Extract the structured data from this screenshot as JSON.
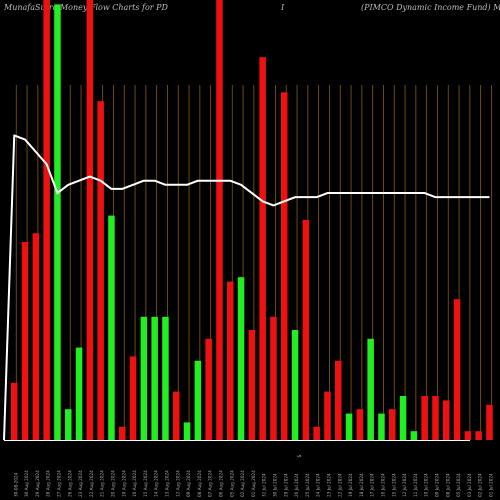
{
  "title": {
    "part1": "MunafaSutra  Money Flow  Charts for PD",
    "part2": "I",
    "part3": "(PIMCO Dynamic Income   Fund) MunafaSutra.com"
  },
  "x_axis_center_label": "$",
  "colors": {
    "background": "#000000",
    "up": "#22ee22",
    "down": "#ee1111",
    "grid": "#8a5a14",
    "line": "#ffffff",
    "axis": "#ffffff",
    "text": "#aaaaaa"
  },
  "chart_data": {
    "type": "bar",
    "title": "MunafaSutra  Money Flow  Charts for PD I (PIMCO Dynamic Income   Fund) MunafaSutra.com",
    "ylim": [
      0,
      100
    ],
    "grid": "vertical",
    "categories": [
      "30-08-2024",
      "30 Aug 2024",
      "29 Aug 2024",
      "28 Aug 2024",
      "27 Aug 2024",
      "26 Aug 2024",
      "23 Aug 2024",
      "22 Aug 2024",
      "21 Aug 2024",
      "20 Aug 2024",
      "19 Aug 2024",
      "16 Aug 2024",
      "15 Aug 2024",
      "14 Aug 2024",
      "13 Aug 2024",
      "12 Aug 2024",
      "09 Aug 2024",
      "08 Aug 2024",
      "07 Aug 2024",
      "06 Aug 2024",
      "05 Aug 2024",
      "02 Aug 2024",
      "01 Aug 2024",
      "31 Jul 2024",
      "30 Jul 2024",
      "29 Jul 2024",
      "26 Jul 2024",
      "25 Jul 2024",
      "24 Jul 2024",
      "23 Jul 2024",
      "22 Jul 2024",
      "19 Jul 2024",
      "18 Jul 2024",
      "17 Jul 2024",
      "16 Jul 2024",
      "15 Jul 2024",
      "12 Jul 2024",
      "11 Jul 2024",
      "10 Jul 2024",
      "09 Jul 2024",
      "08 Jul 2024",
      "05 Jul 2024",
      "03 Jul 2024",
      "02 Jul 2024",
      "01 Jul 2024"
    ],
    "directions": [
      "down",
      "down",
      "down",
      "down",
      "up",
      "up",
      "up",
      "down",
      "down",
      "up",
      "down",
      "down",
      "up",
      "up",
      "up",
      "down",
      "up",
      "up",
      "down",
      "down",
      "down",
      "up",
      "down",
      "down",
      "down",
      "down",
      "up",
      "down",
      "down",
      "down",
      "down",
      "up",
      "down",
      "up",
      "up",
      "down",
      "up",
      "up",
      "down",
      "down",
      "down",
      "down",
      "down",
      "down",
      "down"
    ],
    "values": [
      13,
      45,
      47,
      100,
      99,
      7,
      21,
      100,
      77,
      51,
      3,
      19,
      28,
      28,
      28,
      11,
      4,
      18,
      23,
      100,
      36,
      37,
      25,
      87,
      28,
      79,
      25,
      50,
      3,
      11,
      18,
      6,
      7,
      23,
      6,
      7,
      10,
      2,
      10,
      10,
      9,
      32,
      2,
      2,
      8
    ],
    "line_values": [
      74,
      73,
      70,
      67,
      60,
      62,
      63,
      64,
      63,
      61,
      61,
      62,
      63,
      63,
      62,
      62,
      62,
      63,
      63,
      63,
      63,
      62,
      60,
      58,
      57,
      58,
      59,
      59,
      59,
      60,
      60,
      60,
      60,
      60,
      60,
      60,
      60,
      60,
      60,
      59,
      59,
      59,
      59,
      59,
      59
    ]
  }
}
